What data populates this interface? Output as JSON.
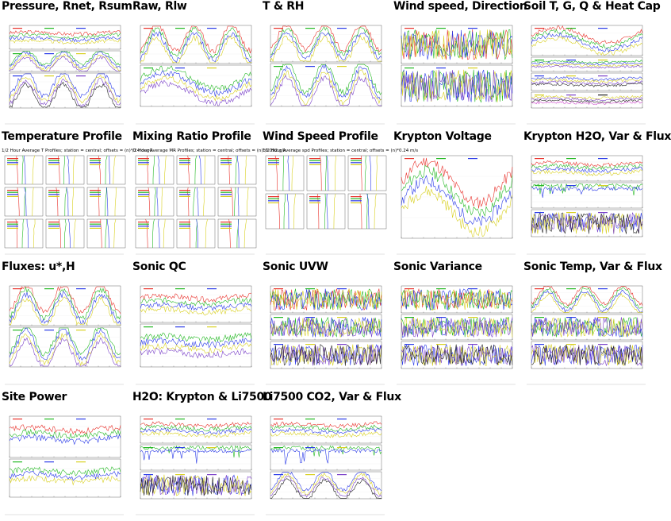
{
  "colors": {
    "red": "#e8302a",
    "green": "#22b822",
    "blue": "#2a3ae8",
    "yellow": "#d8d020",
    "magenta": "#cc44cc",
    "purple": "#7a40c8",
    "black": "#222222",
    "cyan": "#30b8d8"
  },
  "chart_data": [
    {
      "type": "line",
      "title": "Pressure, Rnet, Rsum",
      "subtitle": "",
      "panels": 3
    },
    {
      "type": "line",
      "title": "Raw, Rlw",
      "subtitle": "",
      "panels": 2
    },
    {
      "type": "line",
      "title": "T & RH",
      "subtitle": "",
      "panels": 2
    },
    {
      "type": "line",
      "title": "Wind speed, Direction",
      "subtitle": "",
      "panels": 2
    },
    {
      "type": "line",
      "title": "Soil T, G, Q & Heat Cap",
      "subtitle": "",
      "panels": 4
    },
    {
      "type": "line",
      "title": "Temperature Profile",
      "subtitle": "1/2 Hour Average T Profiles; station = central; offsets = (n)*0.4 degC",
      "panels": 9
    },
    {
      "type": "line",
      "title": "Mixing Ratio Profile",
      "subtitle": "/2 Hour Average MR Profiles; station = central; offsets = (n)*0.092 g/k",
      "panels": 9
    },
    {
      "type": "line",
      "title": "Wind Speed Profile",
      "subtitle": "1/2 Hour Average spd Profiles; station = central; offsets = (n)*0.24 m/s",
      "panels": 6
    },
    {
      "type": "line",
      "title": "Krypton Voltage",
      "subtitle": "",
      "panels": 1
    },
    {
      "type": "line",
      "title": "Krypton H2O, Var & Flux",
      "subtitle": "",
      "panels": 3
    },
    {
      "type": "line",
      "title": "Fluxes: u*,H",
      "subtitle": "",
      "panels": 2
    },
    {
      "type": "line",
      "title": "Sonic QC",
      "subtitle": "",
      "panels": 2
    },
    {
      "type": "line",
      "title": "Sonic UVW",
      "subtitle": "",
      "panels": 3
    },
    {
      "type": "line",
      "title": "Sonic Variance",
      "subtitle": "",
      "panels": 3
    },
    {
      "type": "line",
      "title": "Sonic Temp, Var & Flux",
      "subtitle": "",
      "panels": 3
    },
    {
      "type": "line",
      "title": "Site Power",
      "subtitle": "",
      "panels": 2
    },
    {
      "type": "line",
      "title": "H2O: Krypton & Li7500",
      "subtitle": "",
      "panels": 3
    },
    {
      "type": "line",
      "title": "Li7500 CO2, Var & Flux",
      "subtitle": "",
      "panels": 3
    }
  ]
}
